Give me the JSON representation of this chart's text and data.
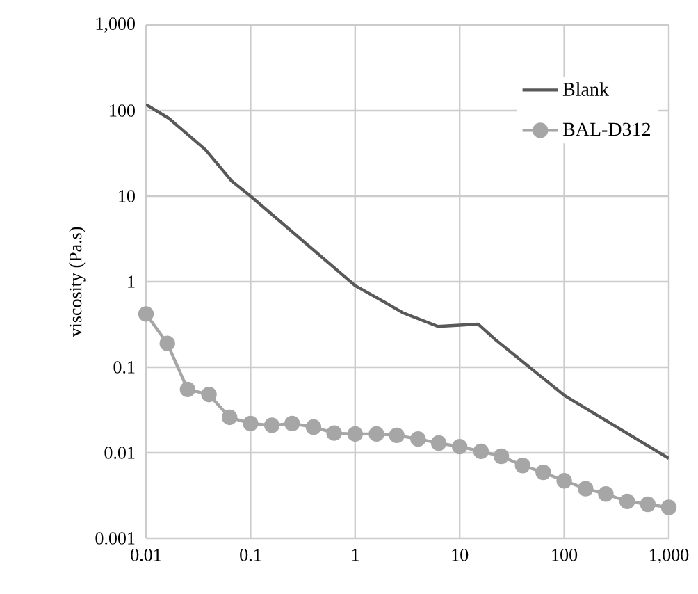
{
  "chart_data": {
    "type": "line",
    "ylabel": "viscosity (Pa.s)",
    "log": "xy",
    "grid": true,
    "legend": "top right",
    "xlim": [
      0.01,
      1000
    ],
    "ylim": [
      0.001,
      1000
    ],
    "xticks": [
      0.01,
      0.1,
      1,
      10,
      100,
      {
        "value": 1000,
        "label": "1,000"
      }
    ],
    "yticks": [
      0.001,
      0.01,
      0.1,
      1,
      10,
      100,
      {
        "value": 1000,
        "label": "1,000"
      }
    ],
    "series": [
      {
        "name": "Blank",
        "color": "#595959",
        "marker": "none",
        "x": [
          0.01,
          0.0166,
          0.037,
          0.066,
          0.1,
          1,
          1.9,
          2.9,
          6.2,
          10,
          15,
          22,
          100,
          1000
        ],
        "values": [
          118,
          81,
          35,
          15,
          10,
          0.9,
          0.58,
          0.43,
          0.3,
          0.31,
          0.32,
          0.21,
          0.047,
          0.0086
        ]
      },
      {
        "name": "BAL-D312",
        "color": "#a6a6a6",
        "marker": "circle",
        "x": [
          0.01,
          0.016,
          0.025,
          0.04,
          0.063,
          0.1,
          0.16,
          0.25,
          0.4,
          0.63,
          1,
          1.6,
          2.5,
          4,
          6.3,
          10,
          16,
          25,
          40,
          63,
          100,
          160,
          250,
          400,
          630,
          1000
        ],
        "values": [
          0.42,
          0.19,
          0.055,
          0.048,
          0.026,
          0.022,
          0.021,
          0.022,
          0.02,
          0.017,
          0.0166,
          0.0166,
          0.016,
          0.0145,
          0.013,
          0.0118,
          0.0104,
          0.0091,
          0.0071,
          0.0059,
          0.0047,
          0.0038,
          0.0033,
          0.0027,
          0.0025,
          0.0023
        ]
      }
    ]
  }
}
